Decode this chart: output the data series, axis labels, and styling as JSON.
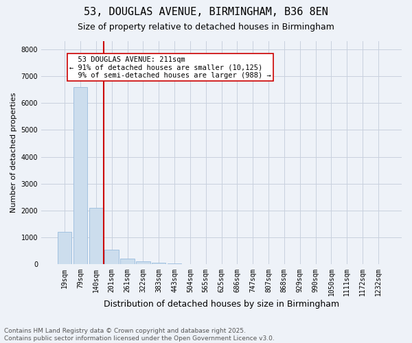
{
  "title1": "53, DOUGLAS AVENUE, BIRMINGHAM, B36 8EN",
  "title2": "Size of property relative to detached houses in Birmingham",
  "xlabel": "Distribution of detached houses by size in Birmingham",
  "ylabel": "Number of detached properties",
  "categories": [
    "19sqm",
    "79sqm",
    "140sqm",
    "201sqm",
    "261sqm",
    "322sqm",
    "383sqm",
    "443sqm",
    "504sqm",
    "565sqm",
    "625sqm",
    "686sqm",
    "747sqm",
    "807sqm",
    "868sqm",
    "929sqm",
    "990sqm",
    "1050sqm",
    "1111sqm",
    "1172sqm",
    "1232sqm"
  ],
  "values": [
    1200,
    6600,
    2100,
    550,
    210,
    110,
    65,
    25,
    8,
    2,
    0,
    0,
    0,
    0,
    0,
    0,
    0,
    0,
    0,
    0,
    0
  ],
  "bar_color": "#ccdded",
  "bar_edge_color": "#99bbdd",
  "vline_color": "#cc0000",
  "vline_pos": 2.5,
  "annotation_text": "  53 DOUGLAS AVENUE: 211sqm  \n← 91% of detached houses are smaller (10,125)\n  9% of semi-detached houses are larger (988) →",
  "annotation_box_color": "white",
  "annotation_box_edge": "#cc0000",
  "ylim": [
    0,
    8300
  ],
  "yticks": [
    0,
    1000,
    2000,
    3000,
    4000,
    5000,
    6000,
    7000,
    8000
  ],
  "background_color": "#eef2f8",
  "grid_color": "#c8d0de",
  "footer": "Contains HM Land Registry data © Crown copyright and database right 2025.\nContains public sector information licensed under the Open Government Licence v3.0.",
  "title1_fontsize": 11,
  "title2_fontsize": 9,
  "xlabel_fontsize": 9,
  "ylabel_fontsize": 8,
  "tick_fontsize": 7,
  "footer_fontsize": 6.5,
  "annotation_fontsize": 7.5
}
